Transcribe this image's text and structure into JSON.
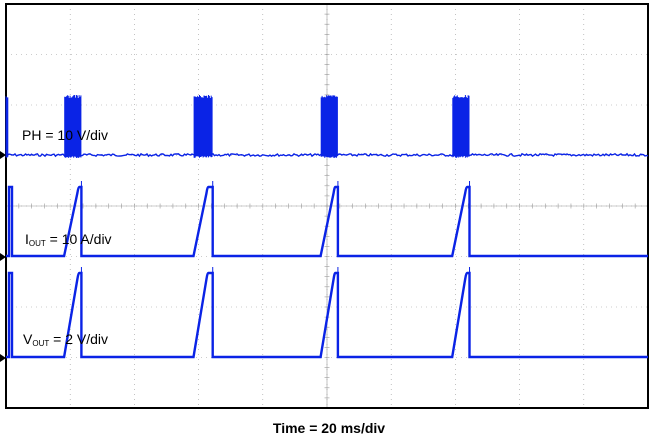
{
  "chart_data": {
    "type": "line",
    "title": "",
    "xlabel": "Time = 20 ms/div",
    "time_per_div_ms": 20,
    "divisions": {
      "x": 10,
      "y": 8
    },
    "grid": "dotted",
    "trace_color": "#0a23e6",
    "hiccup_events": [
      {
        "ramp_start_ms": 18.1,
        "ramp_end_ms": 22.8,
        "switching_end_ms": 23.5
      },
      {
        "ramp_start_ms": 58.4,
        "ramp_end_ms": 63.0,
        "switching_end_ms": 64.4
      },
      {
        "ramp_start_ms": 98.0,
        "ramp_end_ms": 102.6,
        "switching_end_ms": 103.4
      },
      {
        "ramp_start_ms": 139.0,
        "ramp_end_ms": 143.6,
        "switching_end_ms": 144.4
      }
    ],
    "series": [
      {
        "name": "PH",
        "label_main": "PH = 10 V/div",
        "label_sub": "",
        "label_rest": "",
        "scale": "10 V/div"
      },
      {
        "name": "IOUT",
        "label_main": "I",
        "label_sub": "OUT",
        "label_rest": " = 10 A/div",
        "scale": "10 A/div"
      },
      {
        "name": "VOUT",
        "label_main": "V",
        "label_sub": "OUT",
        "label_rest": " = 2 V/div",
        "scale": "2 V/div"
      }
    ]
  }
}
